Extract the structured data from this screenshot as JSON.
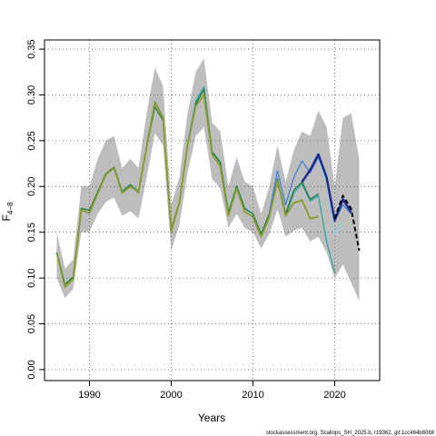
{
  "chart_data": {
    "type": "line",
    "xlabel": "Years",
    "ylabel_main": "F",
    "ylabel_sub": "4−8",
    "xlim": [
      1984.5,
      2025.5
    ],
    "ylim": [
      -0.012,
      0.36
    ],
    "xticks": [
      1990,
      2000,
      2010,
      2020
    ],
    "yticks": [
      0.0,
      0.05,
      0.1,
      0.15,
      0.2,
      0.25,
      0.3,
      0.35
    ],
    "ytick_labels": [
      "0.00",
      "0.05",
      "0.10",
      "0.15",
      "0.20",
      "0.25",
      "0.30",
      "0.35"
    ],
    "grid": true,
    "footer": "stockassessment.org, Scallops_SH_2025.b, r19362, git:1cc464b8068",
    "band": {
      "x": [
        1986,
        1987,
        1988,
        1989,
        1990,
        1991,
        1992,
        1993,
        1994,
        1995,
        1996,
        1997,
        1998,
        1999,
        2000,
        2001,
        2002,
        2003,
        2004,
        2005,
        2006,
        2007,
        2008,
        2009,
        2010,
        2011,
        2012,
        2013,
        2014,
        2015,
        2016,
        2017,
        2018,
        2019,
        2020,
        2021,
        2022,
        2023
      ],
      "upper": [
        0.15,
        0.11,
        0.12,
        0.2,
        0.2,
        0.23,
        0.25,
        0.255,
        0.22,
        0.23,
        0.22,
        0.28,
        0.33,
        0.31,
        0.18,
        0.21,
        0.28,
        0.325,
        0.34,
        0.27,
        0.26,
        0.2,
        0.232,
        0.205,
        0.2,
        0.17,
        0.2,
        0.245,
        0.205,
        0.24,
        0.26,
        0.255,
        0.283,
        0.265,
        0.2,
        0.275,
        0.28,
        0.23
      ],
      "lower": [
        0.1,
        0.078,
        0.088,
        0.15,
        0.15,
        0.17,
        0.183,
        0.188,
        0.168,
        0.173,
        0.165,
        0.21,
        0.258,
        0.245,
        0.13,
        0.158,
        0.215,
        0.255,
        0.265,
        0.208,
        0.198,
        0.155,
        0.17,
        0.155,
        0.15,
        0.132,
        0.148,
        0.175,
        0.145,
        0.152,
        0.155,
        0.14,
        0.145,
        0.128,
        0.1,
        0.115,
        0.095,
        0.075
      ]
    },
    "series": [
      {
        "color": "#2ca6a4",
        "width": 1.3,
        "dash": "",
        "x": [
          1986,
          1987,
          1988,
          1989,
          1990,
          1991,
          1992,
          1993,
          1994,
          1995,
          1996,
          1997,
          1998,
          1999,
          2000,
          2001,
          2002,
          2003,
          2004,
          2005,
          2006,
          2007,
          2008,
          2009,
          2010,
          2011,
          2012,
          2013,
          2014,
          2015,
          2016,
          2017,
          2018,
          2019,
          2020
        ],
        "y": [
          0.128,
          0.093,
          0.101,
          0.176,
          0.174,
          0.194,
          0.214,
          0.221,
          0.195,
          0.202,
          0.195,
          0.245,
          0.293,
          0.276,
          0.153,
          0.183,
          0.247,
          0.293,
          0.309,
          0.238,
          0.227,
          0.172,
          0.201,
          0.176,
          0.17,
          0.148,
          0.17,
          0.208,
          0.168,
          0.193,
          0.203,
          0.184,
          0.19,
          0.14,
          0.106
        ]
      },
      {
        "color": "#1b7a3e",
        "width": 1.3,
        "dash": "",
        "x": [
          1986,
          1987,
          1988,
          1989,
          1990,
          1991,
          1992,
          1993,
          1994,
          1995,
          1996,
          1997,
          1998,
          1999,
          2000,
          2001,
          2002,
          2003,
          2004,
          2005,
          2006,
          2007,
          2008,
          2009,
          2010,
          2011,
          2012,
          2013,
          2014,
          2015,
          2016,
          2017,
          2018
        ],
        "y": [
          0.128,
          0.093,
          0.101,
          0.176,
          0.174,
          0.194,
          0.214,
          0.221,
          0.194,
          0.202,
          0.193,
          0.243,
          0.287,
          0.272,
          0.153,
          0.183,
          0.244,
          0.29,
          0.306,
          0.238,
          0.226,
          0.171,
          0.2,
          0.176,
          0.17,
          0.148,
          0.17,
          0.208,
          0.17,
          0.196,
          0.205,
          0.186,
          0.192
        ]
      },
      {
        "color": "#8fcfe6",
        "width": 1.2,
        "dash": "",
        "x": [
          2017,
          2018,
          2019,
          2020,
          2021
        ],
        "y": [
          0.23,
          0.23,
          0.205,
          0.148,
          0.16
        ]
      },
      {
        "color": "#3e7ad6",
        "width": 1.2,
        "dash": "",
        "x": [
          2012,
          2013,
          2014,
          2015,
          2016,
          2017,
          2018,
          2019,
          2020,
          2021,
          2022
        ],
        "y": [
          0.172,
          0.217,
          0.18,
          0.21,
          0.228,
          0.215,
          0.232,
          0.21,
          0.162,
          0.18,
          0.17
        ]
      },
      {
        "color": "#1f2a8a",
        "width": 2.5,
        "dash": "",
        "x": [
          2016,
          2017,
          2018,
          2019,
          2020,
          2021,
          2022
        ],
        "y": [
          0.205,
          0.218,
          0.235,
          0.21,
          0.163,
          0.186,
          0.172
        ]
      },
      {
        "color": "#8a9a2c",
        "width": 1.8,
        "dash": "",
        "x": [
          1986,
          1987,
          1988,
          1989,
          1990,
          1991,
          1992,
          1993,
          1994,
          1995,
          1996,
          1997,
          1998,
          1999,
          2000,
          2001,
          2002,
          2003,
          2004,
          2005,
          2006,
          2007,
          2008,
          2009,
          2010,
          2011,
          2012,
          2013,
          2014,
          2015,
          2016,
          2017,
          2018
        ],
        "y": [
          0.127,
          0.09,
          0.099,
          0.174,
          0.171,
          0.192,
          0.213,
          0.22,
          0.193,
          0.2,
          0.194,
          0.244,
          0.292,
          0.275,
          0.151,
          0.182,
          0.245,
          0.288,
          0.3,
          0.235,
          0.222,
          0.168,
          0.198,
          0.172,
          0.167,
          0.145,
          0.167,
          0.206,
          0.168,
          0.182,
          0.185,
          0.165,
          0.167
        ]
      },
      {
        "color": "#000000",
        "width": 2.0,
        "dash": "5,3",
        "x": [
          2020,
          2021,
          2022,
          2023
        ],
        "y": [
          0.165,
          0.19,
          0.176,
          0.13
        ]
      }
    ]
  }
}
